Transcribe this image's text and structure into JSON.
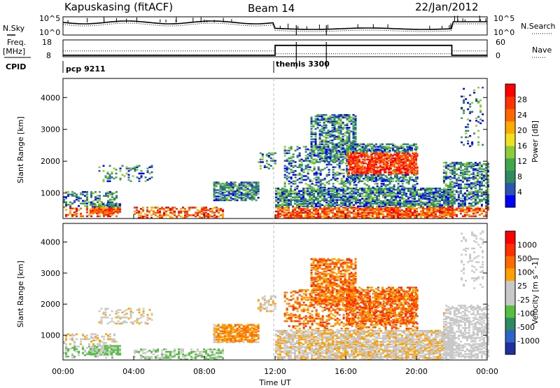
{
  "header": {
    "station": "Kapuskasing (fitACF)",
    "beam": "Beam 14",
    "date": "22/Jan/2012"
  },
  "left_labels": {
    "nsky": "N.Sky",
    "freq": "Freq.",
    "mhz": "[MHz]",
    "cpid": "CPID"
  },
  "right_labels": {
    "nsearch": "N.Search",
    "nave": "Nave"
  },
  "cpid_blocks": [
    {
      "label": "pcp 9211",
      "start_hour": 0
    },
    {
      "label": "themis 3300",
      "start_hour": 12
    }
  ],
  "chart_data": [
    {
      "type": "line",
      "name": "noise",
      "y_ticks_left": [
        "10^5",
        "10^0"
      ],
      "y_ticks_right": [
        "10^5",
        "10^0"
      ],
      "x_range_hours": [
        0,
        24
      ],
      "step_hour": 12
    },
    {
      "type": "line",
      "name": "frequency",
      "y_ticks_left": [
        "18",
        "8"
      ],
      "y_ticks_right": [
        "60",
        "0"
      ],
      "freq_mhz": [
        [
          0,
          8.6
        ],
        [
          12,
          8.6
        ],
        [
          12,
          16
        ],
        [
          22,
          16
        ],
        [
          22,
          8.6
        ],
        [
          24,
          8.6
        ]
      ],
      "nave": [
        [
          0,
          23
        ],
        [
          12,
          23
        ],
        [
          12,
          10
        ],
        [
          22,
          10
        ],
        [
          22,
          23
        ],
        [
          24,
          23
        ]
      ]
    },
    {
      "type": "heatmap",
      "name": "power",
      "ylabel": "Slant Range [km]",
      "yticks": [
        1000,
        2000,
        3000,
        4000
      ],
      "ylim": [
        200,
        4600
      ],
      "colorbar_label": "Power [dB]",
      "colorbar_ticks": [
        "28",
        "24",
        "20",
        "16",
        "12",
        "8",
        "4"
      ],
      "colors": [
        "#0000ff",
        "#2a55b3",
        "#2e8a5f",
        "#40a84a",
        "#8ccc3a",
        "#f0e020",
        "#ffaa00",
        "#ff6600",
        "#ff3300",
        "#ff0000"
      ]
    },
    {
      "type": "heatmap",
      "name": "velocity",
      "ylabel": "Slant Range [km]",
      "yticks": [
        1000,
        2000,
        3000,
        4000
      ],
      "ylim": [
        200,
        4600
      ],
      "colorbar_label": "Velocity [m s^-1]",
      "colorbar_ticks": [
        "1000",
        "500",
        "100",
        "25",
        "-25",
        "-100",
        "-500",
        "-1000"
      ],
      "colors": [
        "#2030a0",
        "#2f63c8",
        "#2e8a5f",
        "#55c040",
        "#c8c8c8",
        "#c8c8c8",
        "#ffa000",
        "#ff6a00",
        "#ff3000",
        "#ff0000"
      ],
      "xlabel": "Time UT",
      "xticks": [
        "00:00",
        "04:00",
        "08:00",
        "12:00",
        "16:00",
        "20:00",
        "00:00"
      ]
    }
  ]
}
